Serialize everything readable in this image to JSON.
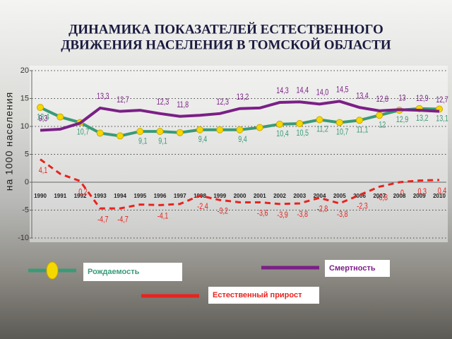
{
  "chart_data": {
    "type": "line",
    "title": [
      "ДИНАМИКА ПОКАЗАТЕЛЕЙ ЕСТЕСТВЕННОГО",
      "ДВИЖЕНИЯ НАСЕЛЕНИЯ В ТОМСКОЙ ОБЛАСТИ"
    ],
    "y_label": "на 1000 населения",
    "categories": [
      "1990",
      "1991",
      "1992",
      "1993",
      "1994",
      "1995",
      "1996",
      "1997",
      "1998",
      "1999",
      "2000",
      "2001",
      "2002",
      "2003",
      "2004",
      "2005",
      "2006",
      "2007",
      "2008",
      "2009",
      "2010"
    ],
    "ylim": [
      -10,
      20
    ],
    "yticks": [
      -10,
      -5,
      0,
      5,
      10,
      15,
      20
    ],
    "grid": true,
    "series": [
      {
        "name": "Рождаемость",
        "color": "#3a9a78",
        "marker": "#f5d800",
        "values": [
          13.4,
          11.7,
          10.7,
          8.8,
          8.3,
          9.1,
          9.1,
          8.9,
          9.4,
          9.4,
          9.4,
          9.8,
          10.4,
          10.5,
          11.2,
          10.7,
          11.1,
          12,
          12.9,
          13.2,
          13.1
        ],
        "value_labels": [
          "13,4",
          null,
          "10,7",
          null,
          null,
          "9,1",
          "9,1",
          null,
          "9,4",
          null,
          "9,4",
          null,
          "10,4",
          "10,5",
          "11,2",
          "10,7",
          "11,1",
          "12",
          "12,9",
          "13,2",
          "13,1"
        ]
      },
      {
        "name": "Смертность",
        "color": "#7b1f86",
        "values": [
          9.3,
          9.5,
          10.6,
          13.3,
          12.7,
          12.9,
          12.3,
          11.8,
          12.0,
          12.3,
          13.2,
          13.3,
          14.3,
          14.4,
          14.0,
          14.5,
          13.4,
          12.8,
          13.0,
          12.9,
          12.7
        ],
        "value_labels": [
          "9,3",
          null,
          null,
          "13,3",
          "12,7",
          null,
          "12,3",
          "11,8",
          null,
          "12,3",
          "13,2",
          null,
          "14,3",
          "14,4",
          "14,0",
          "14,5",
          "13,4",
          "12,8",
          "13",
          "12,9",
          "12,7"
        ]
      },
      {
        "name": "Естественный прирост",
        "color": "#e8231e",
        "values": [
          4.1,
          1.5,
          0.2,
          -4.7,
          -4.7,
          -4.0,
          -4.1,
          -3.9,
          -2.4,
          -3.2,
          -3.6,
          -3.6,
          -3.9,
          -3.8,
          -2.8,
          -3.8,
          -2.3,
          -0.8,
          0,
          0.3,
          0.4
        ],
        "value_labels": [
          "4,1",
          null,
          "0,2",
          "-4,7",
          "-4,7",
          null,
          "-4,1",
          null,
          "-2,4",
          "-3,2",
          null,
          "-3,6",
          "-3,9",
          "-3,8",
          "-2,8",
          "-3,8",
          "-2,3",
          "-0,8",
          "0",
          "0,3",
          "0,4"
        ]
      }
    ]
  }
}
